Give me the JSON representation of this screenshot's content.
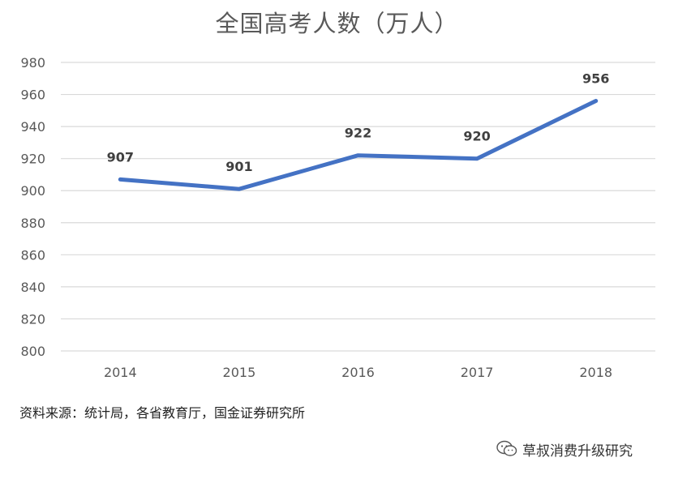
{
  "chart_data": {
    "type": "line",
    "title": "全国高考人数（万人）",
    "categories": [
      "2014",
      "2015",
      "2016",
      "2017",
      "2018"
    ],
    "series": [
      {
        "values": [
          907,
          901,
          922,
          920,
          956
        ]
      }
    ],
    "data_labels": [
      "907",
      "901",
      "922",
      "920",
      "956"
    ],
    "y_ticks": [
      "980",
      "960",
      "940",
      "920",
      "900",
      "880",
      "860",
      "840",
      "820",
      "800"
    ],
    "ylim": [
      800,
      980
    ],
    "grid": true,
    "line_color": "#4472C4",
    "xlabel": "",
    "ylabel": ""
  },
  "source_note": "资料来源：统计局，各省教育厅，国金证券研究所",
  "watermark": {
    "icon": "wechat-icon",
    "text": "草叔消费升级研究"
  }
}
